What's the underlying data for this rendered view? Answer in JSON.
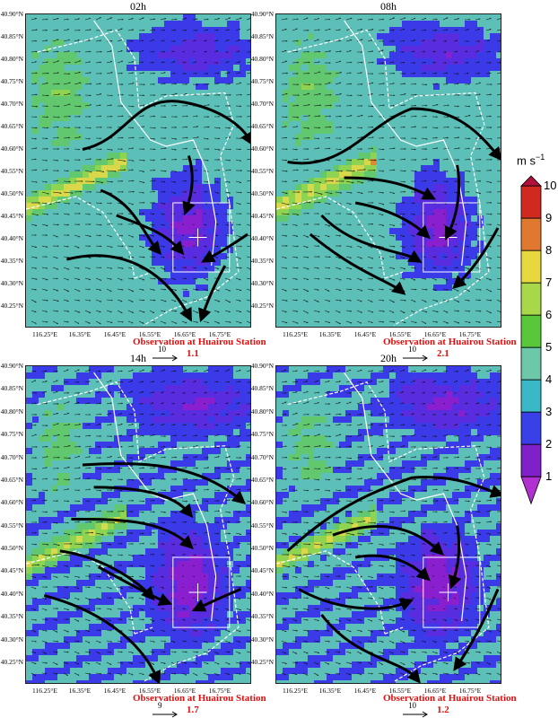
{
  "panels": [
    {
      "title": "02h",
      "obs_label": "Observation at Huairou Station",
      "obs_value": "1.1",
      "ref_value": "10"
    },
    {
      "title": "08h",
      "obs_label": "Observation at Huairou Station",
      "obs_value": "2.1",
      "ref_value": "10"
    },
    {
      "title": "14h",
      "obs_label": "Observation at Huairou Station",
      "obs_value": "1.7",
      "ref_value": "9"
    },
    {
      "title": "20h",
      "obs_label": "Observation at Huairou Station",
      "obs_value": "1.2",
      "ref_value": "10"
    }
  ],
  "lat_labels": [
    "40.90°N",
    "40.85°N",
    "40.80°N",
    "40.75°N",
    "40.70°N",
    "40.65°N",
    "40.60°N",
    "40.55°N",
    "40.50°N",
    "40.45°N",
    "40.40°N",
    "40.35°N",
    "40.30°N",
    "40.25°N"
  ],
  "lon_labels": [
    "116.25°E",
    "16.35°E",
    "16.45°E",
    "16.55°E",
    "16.65°E",
    "16.75°E"
  ],
  "colorbar": {
    "unit": "m s",
    "unit_exp": "−1",
    "ticks": [
      "10",
      "9",
      "8",
      "7",
      "6",
      "5",
      "4",
      "3",
      "2",
      "1"
    ],
    "colors": [
      "#b0103a",
      "#d02a20",
      "#e07830",
      "#e8d840",
      "#a8d84a",
      "#58c83a",
      "#6cc8a8",
      "#3ab8c8",
      "#3a40e8",
      "#8020c8",
      "#b030d0"
    ]
  },
  "colors": {
    "calm": "#3a3ae8",
    "very_calm": "#7a20d8",
    "moderate": "#5cc0b0",
    "breezy": "#8ad060",
    "windy": "#e8c840",
    "strong": "#d83020"
  }
}
